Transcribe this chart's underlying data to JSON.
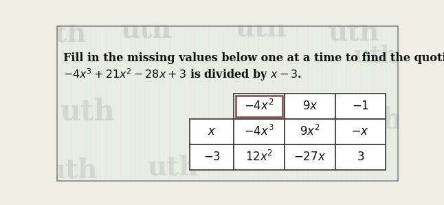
{
  "title_line1": "Fill in the missing values below one at a time to find the quotient when",
  "title_line2": "$-4x^3 + 21x^2 - 28x + 3$ is divided by $x - 3$.",
  "background_color": "#f0ede4",
  "text_color": "#111111",
  "watermark_text": "uth",
  "watermark_color": "#aaaaaa",
  "cyan_line_color": "#88ddcc",
  "grid_color": "#444444",
  "highlight_border_color": "#884444",
  "header_cells": [
    "$-4x^2$",
    "$9x$",
    "$-1$"
  ],
  "row1_label": "$x$",
  "row1_cells": [
    "$-4x^3$",
    "$9x^2$",
    "$-x$"
  ],
  "row2_label": "$-3$",
  "row2_cells": [
    "$12x^2$",
    "$-27x$",
    "$3$"
  ],
  "fig_width": 6.46,
  "fig_height": 2.98,
  "dpi": 100
}
